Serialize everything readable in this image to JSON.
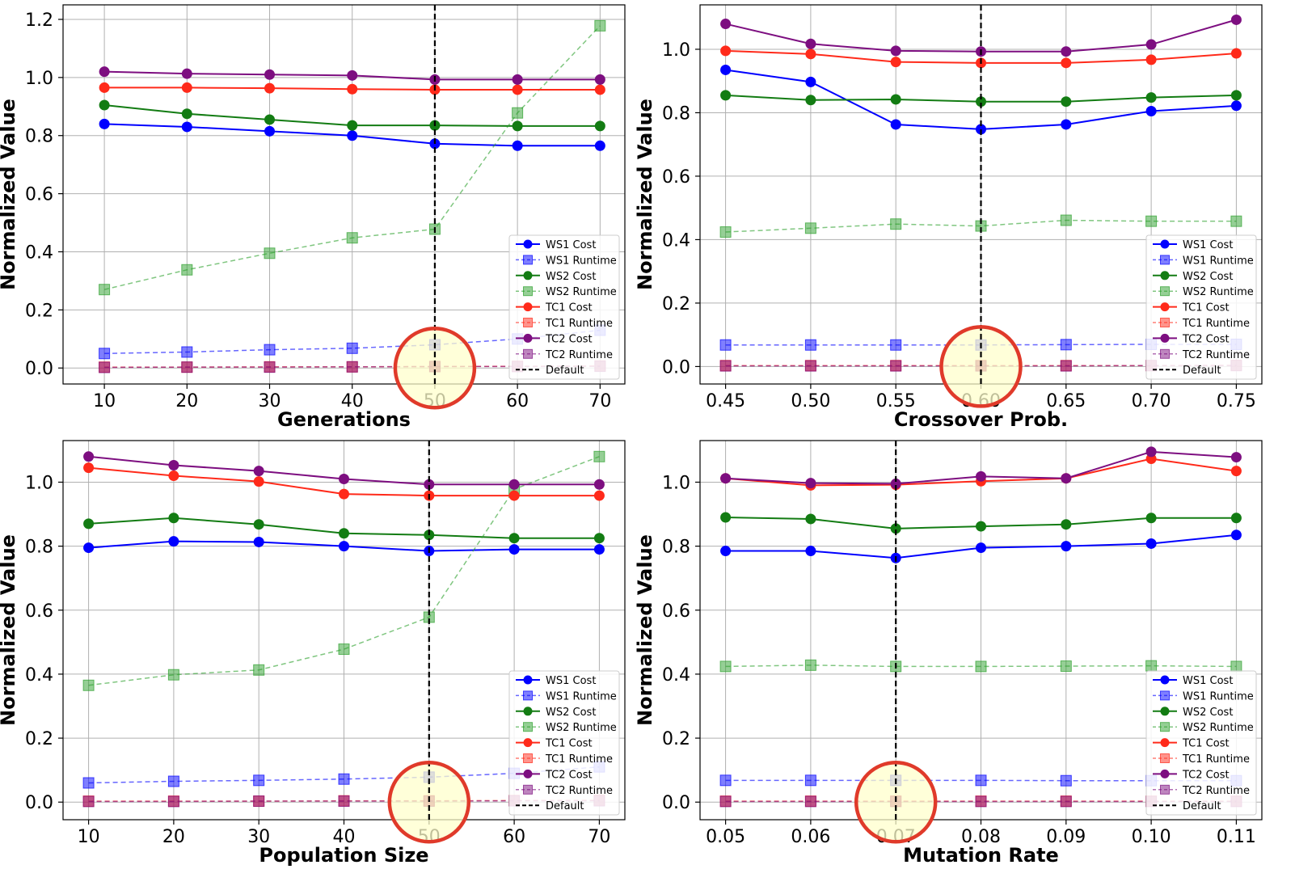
{
  "series_styles": [
    {
      "key": "ws1c",
      "color": "#0000ff",
      "kind": "cost"
    },
    {
      "key": "ws1r",
      "color": "#0000ff",
      "kind": "runtime"
    },
    {
      "key": "ws2c",
      "color": "#137c13",
      "kind": "cost"
    },
    {
      "key": "ws2r",
      "color": "#2ca02c",
      "kind": "runtime"
    },
    {
      "key": "tc1c",
      "color": "#ff2a1a",
      "kind": "cost"
    },
    {
      "key": "tc1r",
      "color": "#ff2a1a",
      "kind": "runtime"
    },
    {
      "key": "tc2c",
      "color": "#7d0e80",
      "kind": "cost"
    },
    {
      "key": "tc2r",
      "color": "#7d0e80",
      "kind": "runtime"
    }
  ],
  "highlight": {
    "stroke": "#e03a2a",
    "fill": "#ffffcc"
  },
  "chart_data": [
    {
      "type": "line",
      "xlabel": "Generations",
      "ylabel": "Normalized Value",
      "x": [
        10,
        20,
        30,
        40,
        50,
        60,
        70
      ],
      "xticks": [
        "10",
        "20",
        "30",
        "40",
        "50",
        "60",
        "70"
      ],
      "xlim": [
        5,
        73
      ],
      "ylim": [
        -0.055,
        1.25
      ],
      "yticks": [
        0.0,
        0.2,
        0.4,
        0.6,
        0.8,
        1.0,
        1.2
      ],
      "ytick_labels": [
        "0.0",
        "0.2",
        "0.4",
        "0.6",
        "0.8",
        "1.0",
        "1.2"
      ],
      "default_x": 50,
      "grid": true,
      "legend_position": "bottom-right",
      "legend": [
        "WS1 Cost",
        "WS1 Runtime",
        "WS2 Cost",
        "WS2 Runtime",
        "TC1 Cost",
        "TC1 Runtime",
        "TC2 Cost",
        "TC2 Runtime",
        "Default"
      ],
      "series": [
        {
          "name": "WS1 Cost",
          "values": [
            0.84,
            0.83,
            0.815,
            0.8,
            0.772,
            0.765,
            0.765
          ]
        },
        {
          "name": "WS1 Runtime",
          "values": [
            0.05,
            0.055,
            0.063,
            0.068,
            0.08,
            0.1,
            0.13
          ]
        },
        {
          "name": "WS2 Cost",
          "values": [
            0.905,
            0.875,
            0.855,
            0.835,
            0.835,
            0.833,
            0.833
          ]
        },
        {
          "name": "WS2 Runtime",
          "values": [
            0.27,
            0.338,
            0.395,
            0.448,
            0.478,
            0.878,
            1.178
          ]
        },
        {
          "name": "TC1 Cost",
          "values": [
            0.965,
            0.965,
            0.963,
            0.96,
            0.958,
            0.958,
            0.958
          ]
        },
        {
          "name": "TC1 Runtime",
          "values": [
            0.003,
            0.003,
            0.004,
            0.004,
            0.005,
            0.006,
            0.007
          ]
        },
        {
          "name": "TC2 Cost",
          "values": [
            1.02,
            1.013,
            1.01,
            1.007,
            0.993,
            0.993,
            0.993
          ]
        },
        {
          "name": "TC2 Runtime",
          "values": [
            0.002,
            0.003,
            0.003,
            0.004,
            0.005,
            0.005,
            0.006
          ]
        }
      ]
    },
    {
      "type": "line",
      "xlabel": "Crossover Prob.",
      "ylabel": "Normalized Value",
      "x": [
        0.45,
        0.5,
        0.55,
        0.6,
        0.65,
        0.7,
        0.75
      ],
      "xticks": [
        "0.45",
        "0.50",
        "0.55",
        "0.60",
        "0.65",
        "0.70",
        "0.75"
      ],
      "xlim": [
        0.435,
        0.765
      ],
      "ylim": [
        -0.055,
        1.14
      ],
      "yticks": [
        0.0,
        0.2,
        0.4,
        0.6,
        0.8,
        1.0
      ],
      "ytick_labels": [
        "0.0",
        "0.2",
        "0.4",
        "0.6",
        "0.8",
        "1.0"
      ],
      "default_x": 0.6,
      "grid": true,
      "legend_position": "bottom-right",
      "legend": [
        "WS1 Cost",
        "WS1 Runtime",
        "WS2 Cost",
        "WS2 Runtime",
        "TC1 Cost",
        "TC1 Runtime",
        "TC2 Cost",
        "TC2 Runtime",
        "Default"
      ],
      "series": [
        {
          "name": "WS1 Cost",
          "values": [
            0.935,
            0.897,
            0.763,
            0.748,
            0.763,
            0.805,
            0.822
          ]
        },
        {
          "name": "WS1 Runtime",
          "values": [
            0.068,
            0.068,
            0.068,
            0.068,
            0.069,
            0.07,
            0.07
          ]
        },
        {
          "name": "WS2 Cost",
          "values": [
            0.855,
            0.84,
            0.842,
            0.835,
            0.835,
            0.848,
            0.855
          ]
        },
        {
          "name": "WS2 Runtime",
          "values": [
            0.424,
            0.436,
            0.449,
            0.443,
            0.461,
            0.458,
            0.458
          ]
        },
        {
          "name": "TC1 Cost",
          "values": [
            0.995,
            0.985,
            0.96,
            0.957,
            0.957,
            0.967,
            0.987
          ]
        },
        {
          "name": "TC1 Runtime",
          "values": [
            0.003,
            0.003,
            0.003,
            0.003,
            0.003,
            0.003,
            0.004
          ]
        },
        {
          "name": "TC2 Cost",
          "values": [
            1.08,
            1.017,
            0.995,
            0.993,
            0.993,
            1.015,
            1.093
          ]
        },
        {
          "name": "TC2 Runtime",
          "values": [
            0.002,
            0.002,
            0.002,
            0.002,
            0.002,
            0.003,
            0.003
          ]
        }
      ]
    },
    {
      "type": "line",
      "xlabel": "Population Size",
      "ylabel": "Normalized Value",
      "x": [
        10,
        20,
        30,
        40,
        50,
        60,
        70
      ],
      "xticks": [
        "10",
        "20",
        "30",
        "40",
        "50",
        "60",
        "70"
      ],
      "xlim": [
        7,
        73
      ],
      "ylim": [
        -0.055,
        1.13
      ],
      "yticks": [
        0.0,
        0.2,
        0.4,
        0.6,
        0.8,
        1.0
      ],
      "ytick_labels": [
        "0.0",
        "0.2",
        "0.4",
        "0.6",
        "0.8",
        "1.0"
      ],
      "default_x": 50,
      "grid": true,
      "legend_position": "bottom-right",
      "legend": [
        "WS1 Cost",
        "WS1 Runtime",
        "WS2 Cost",
        "WS2 Runtime",
        "TC1 Cost",
        "TC1 Runtime",
        "TC2 Cost",
        "TC2 Runtime",
        "Default"
      ],
      "series": [
        {
          "name": "WS1 Cost",
          "values": [
            0.795,
            0.815,
            0.813,
            0.8,
            0.785,
            0.79,
            0.79
          ]
        },
        {
          "name": "WS1 Runtime",
          "values": [
            0.06,
            0.065,
            0.068,
            0.072,
            0.078,
            0.09,
            0.11
          ]
        },
        {
          "name": "WS2 Cost",
          "values": [
            0.87,
            0.888,
            0.868,
            0.84,
            0.835,
            0.825,
            0.825
          ]
        },
        {
          "name": "WS2 Runtime",
          "values": [
            0.365,
            0.398,
            0.413,
            0.478,
            0.578,
            0.978,
            1.08
          ]
        },
        {
          "name": "TC1 Cost",
          "values": [
            1.045,
            1.02,
            1.002,
            0.963,
            0.958,
            0.958,
            0.958
          ]
        },
        {
          "name": "TC1 Runtime",
          "values": [
            0.003,
            0.003,
            0.003,
            0.004,
            0.004,
            0.005,
            0.006
          ]
        },
        {
          "name": "TC2 Cost",
          "values": [
            1.08,
            1.053,
            1.035,
            1.01,
            0.993,
            0.993,
            0.993
          ]
        },
        {
          "name": "TC2 Runtime",
          "values": [
            0.002,
            0.002,
            0.003,
            0.003,
            0.003,
            0.004,
            0.004
          ]
        }
      ]
    },
    {
      "type": "line",
      "xlabel": "Mutation Rate",
      "ylabel": "Normalized Value",
      "x": [
        0.05,
        0.06,
        0.07,
        0.08,
        0.09,
        0.1,
        0.11
      ],
      "xticks": [
        "0.05",
        "0.06",
        "0.07",
        "0.08",
        "0.09",
        "0.10",
        "0.11"
      ],
      "xlim": [
        0.047,
        0.113
      ],
      "ylim": [
        -0.055,
        1.13
      ],
      "yticks": [
        0.0,
        0.2,
        0.4,
        0.6,
        0.8,
        1.0
      ],
      "ytick_labels": [
        "0.0",
        "0.2",
        "0.4",
        "0.6",
        "0.8",
        "1.0"
      ],
      "default_x": 0.07,
      "grid": true,
      "legend_position": "bottom-right",
      "legend": [
        "WS1 Cost",
        "WS1 Runtime",
        "WS2 Cost",
        "WS2 Runtime",
        "TC1 Cost",
        "TC1 Runtime",
        "TC2 Cost",
        "TC2 Runtime",
        "Default"
      ],
      "series": [
        {
          "name": "WS1 Cost",
          "values": [
            0.785,
            0.785,
            0.763,
            0.795,
            0.8,
            0.808,
            0.835
          ]
        },
        {
          "name": "WS1 Runtime",
          "values": [
            0.068,
            0.068,
            0.068,
            0.068,
            0.067,
            0.067,
            0.067
          ]
        },
        {
          "name": "WS2 Cost",
          "values": [
            0.89,
            0.885,
            0.855,
            0.862,
            0.868,
            0.888,
            0.888
          ]
        },
        {
          "name": "WS2 Runtime",
          "values": [
            0.424,
            0.428,
            0.424,
            0.424,
            0.425,
            0.426,
            0.424
          ]
        },
        {
          "name": "TC1 Cost",
          "values": [
            1.012,
            0.99,
            0.992,
            1.003,
            1.012,
            1.073,
            1.035
          ]
        },
        {
          "name": "TC1 Runtime",
          "values": [
            0.003,
            0.003,
            0.003,
            0.003,
            0.003,
            0.003,
            0.003
          ]
        },
        {
          "name": "TC2 Cost",
          "values": [
            1.012,
            0.997,
            0.995,
            1.018,
            1.012,
            1.095,
            1.078
          ]
        },
        {
          "name": "TC2 Runtime",
          "values": [
            0.002,
            0.002,
            0.002,
            0.002,
            0.002,
            0.002,
            0.002
          ]
        }
      ]
    }
  ]
}
